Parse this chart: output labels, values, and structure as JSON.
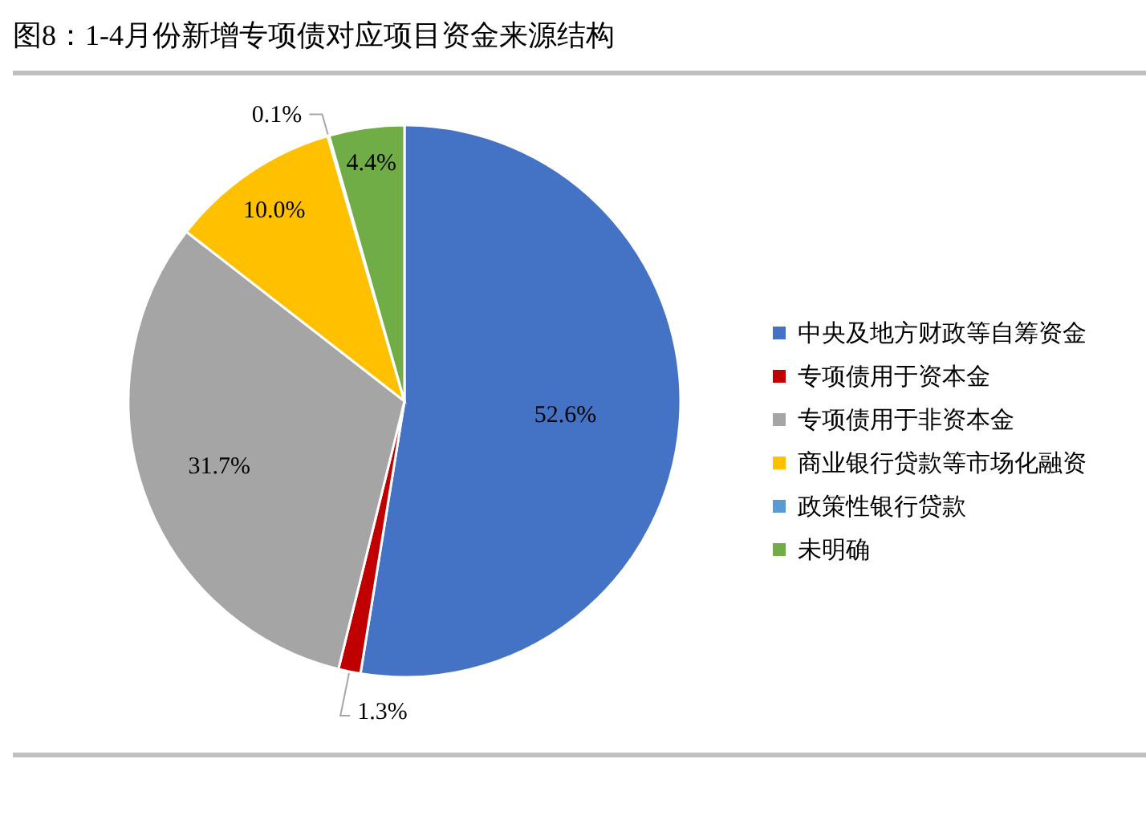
{
  "chart_data": {
    "type": "pie",
    "title": "图8：1-4月份新增专项债对应项目资金来源结构",
    "categories": [
      "中央及地方财政等自筹资金",
      "专项债用于资本金",
      "专项债用于非资本金",
      "商业银行贷款等市场化融资",
      "政策性银行贷款",
      "未明确"
    ],
    "values": [
      52.6,
      1.3,
      31.7,
      10.0,
      0.1,
      4.4
    ],
    "colors": [
      "#4472c4",
      "#c00000",
      "#a5a5a5",
      "#ffc000",
      "#5b9bd5",
      "#70ad47"
    ],
    "value_labels": [
      "52.6%",
      "1.3%",
      "31.7%",
      "10.0%",
      "0.1%",
      "4.4%"
    ],
    "legend": "right"
  }
}
